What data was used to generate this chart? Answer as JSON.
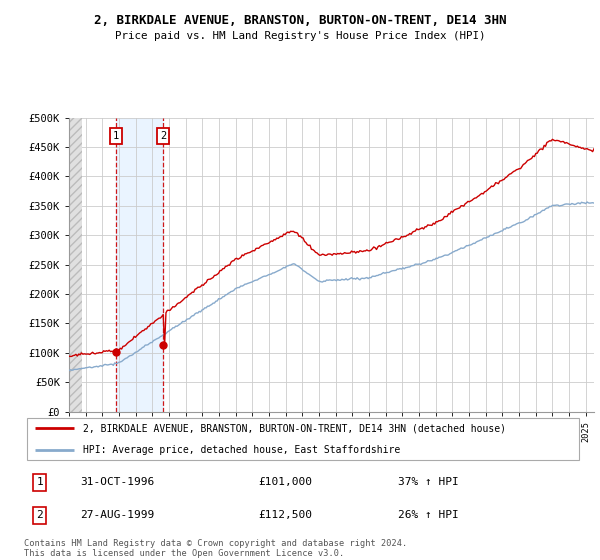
{
  "title": "2, BIRKDALE AVENUE, BRANSTON, BURTON-ON-TRENT, DE14 3HN",
  "subtitle": "Price paid vs. HM Land Registry's House Price Index (HPI)",
  "ylim": [
    0,
    500000
  ],
  "xlim_start": 1994.0,
  "xlim_end": 2025.5,
  "red_line_color": "#cc0000",
  "blue_line_color": "#88aacc",
  "sale1_x": 1996.833,
  "sale1_y": 101000,
  "sale2_x": 1999.667,
  "sale2_y": 112500,
  "legend_red": "2, BIRKDALE AVENUE, BRANSTON, BURTON-ON-TRENT, DE14 3HN (detached house)",
  "legend_blue": "HPI: Average price, detached house, East Staffordshire",
  "table_row1": [
    "1",
    "31-OCT-1996",
    "£101,000",
    "37% ↑ HPI"
  ],
  "table_row2": [
    "2",
    "27-AUG-1999",
    "£112,500",
    "26% ↑ HPI"
  ],
  "footnote": "Contains HM Land Registry data © Crown copyright and database right 2024.\nThis data is licensed under the Open Government Licence v3.0.",
  "grid_color": "#cccccc",
  "shade_color": "#ddeeff",
  "hatch_facecolor": "#e0e0e0",
  "hatch_edgecolor": "#bbbbbb"
}
